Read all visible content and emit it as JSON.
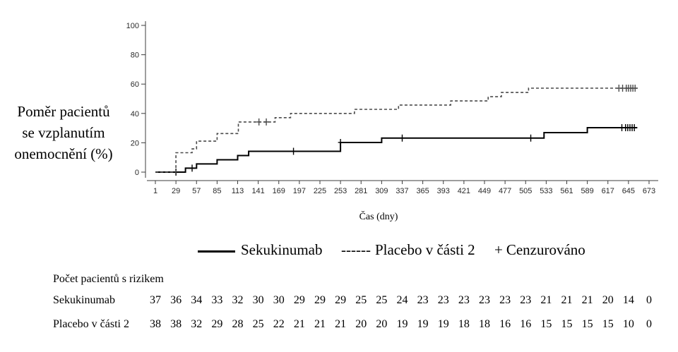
{
  "chart_data": {
    "type": "line",
    "step": true,
    "grid": false,
    "legend_position": "bottom",
    "ylabel_lines": [
      "Poměr pacientů",
      "se vzplanutím",
      "onemocnění (%)"
    ],
    "xlabel": "Čas (dny)",
    "ylim": [
      0,
      100
    ],
    "xlim": [
      1,
      673
    ],
    "yticks": [
      0,
      20,
      40,
      60,
      80,
      100
    ],
    "xticks": [
      1,
      29,
      57,
      85,
      113,
      141,
      169,
      197,
      225,
      253,
      281,
      309,
      337,
      365,
      393,
      421,
      449,
      477,
      505,
      533,
      561,
      589,
      617,
      645,
      673
    ],
    "series": [
      {
        "name": "Sekukinumab",
        "line_style": "solid",
        "color": "#000000",
        "legend_icon": "solid-line-icon",
        "x": [
          1,
          42,
          57,
          85,
          113,
          128,
          253,
          309,
          530,
          589,
          657
        ],
        "y": [
          0,
          2.7,
          5.6,
          8.4,
          11.3,
          14.2,
          20.2,
          23.2,
          26.9,
          30.3,
          30.3
        ],
        "censored": [
          [
            29,
            0
          ],
          [
            51,
            2.7
          ],
          [
            189,
            14.2
          ],
          [
            253,
            20.2
          ],
          [
            337,
            23.2
          ],
          [
            512,
            23.2
          ],
          [
            636,
            30.3
          ],
          [
            641,
            30.3
          ],
          [
            644,
            30.3
          ],
          [
            647,
            30.3
          ],
          [
            650,
            30.3
          ],
          [
            653,
            30.3
          ]
        ]
      },
      {
        "name": "Placebo v části 2",
        "line_style": "dashed",
        "color": "#4a4a4a",
        "legend_icon": "dashed-line-icon",
        "legend_marker_text": "------",
        "x": [
          1,
          29,
          51,
          57,
          85,
          114,
          164,
          185,
          272,
          332,
          403,
          454,
          472,
          509,
          659
        ],
        "y": [
          0,
          13.2,
          15.8,
          21.1,
          26.3,
          34.2,
          37.1,
          40.0,
          42.8,
          45.7,
          48.5,
          51.4,
          54.3,
          57.2,
          57.2
        ],
        "censored": [
          [
            142,
            34.2
          ],
          [
            152,
            34.2
          ],
          [
            632,
            57.2
          ],
          [
            637,
            57.2
          ],
          [
            642,
            57.2
          ],
          [
            645,
            57.2
          ],
          [
            648,
            57.2
          ],
          [
            651,
            57.2
          ],
          [
            654,
            57.2
          ]
        ]
      }
    ],
    "censored_legend": {
      "legend_icon": "plus-icon",
      "marker_text": "+",
      "label": "Cenzurováno"
    },
    "risk_table": {
      "title": "Počet pacientů s rizikem",
      "rows": [
        {
          "label": "Sekukinumab",
          "values": [
            37,
            36,
            34,
            33,
            32,
            30,
            30,
            29,
            29,
            29,
            25,
            25,
            24,
            23,
            23,
            23,
            23,
            23,
            23,
            21,
            21,
            21,
            20,
            14,
            0
          ]
        },
        {
          "label": "Placebo v části 2",
          "values": [
            38,
            38,
            32,
            29,
            28,
            25,
            22,
            21,
            21,
            21,
            20,
            20,
            19,
            19,
            19,
            18,
            18,
            16,
            16,
            15,
            15,
            15,
            15,
            10,
            0
          ]
        }
      ]
    }
  }
}
